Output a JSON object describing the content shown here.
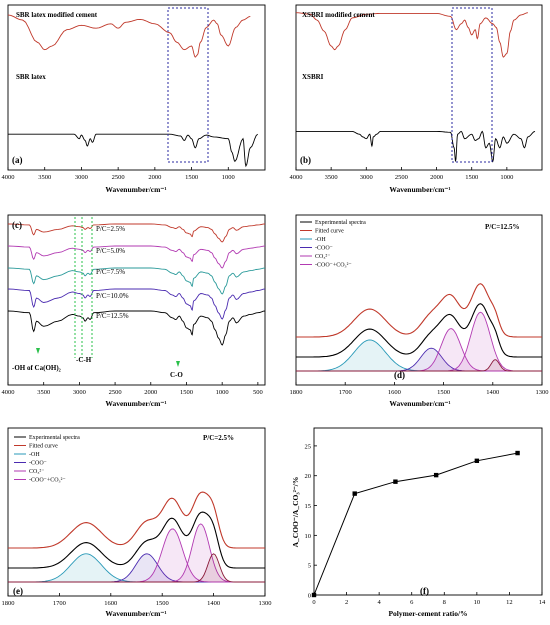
{
  "chart_data": [
    {
      "panel": "(a)",
      "type": "line",
      "xlabel": "Wavenumber/cm⁻¹",
      "xlim": [
        4000,
        500
      ],
      "x_reversed": true,
      "xticks": [
        4000,
        3500,
        3000,
        2500,
        2000,
        1500,
        1000
      ],
      "series": [
        {
          "name": "SBR latex modified cement",
          "color": "#c0392b",
          "x": [
            4000,
            3800,
            3600,
            3500,
            3400,
            3200,
            3000,
            2800,
            2600,
            2500,
            2400,
            2200,
            2000,
            1800,
            1700,
            1600,
            1500,
            1450,
            1420,
            1380,
            1300,
            1200,
            1150,
            1100,
            1000,
            900,
            800,
            700
          ],
          "y": [
            0.92,
            0.85,
            0.55,
            0.45,
            0.5,
            0.72,
            0.78,
            0.74,
            0.8,
            0.74,
            0.82,
            0.86,
            0.8,
            0.68,
            0.55,
            0.45,
            0.5,
            0.35,
            0.38,
            0.55,
            0.75,
            0.85,
            0.8,
            0.65,
            0.5,
            0.75,
            0.85,
            0.9
          ]
        },
        {
          "name": "SBR latex",
          "color": "#000000",
          "x": [
            4000,
            3100,
            3030,
            3000,
            2950,
            2920,
            2880,
            2850,
            2800,
            2000,
            1800,
            1650,
            1600,
            1550,
            1500,
            1450,
            1400,
            1300,
            1200,
            1000,
            950,
            910,
            800,
            760,
            700,
            600
          ],
          "y": [
            0.35,
            0.35,
            0.3,
            0.34,
            0.28,
            0.22,
            0.3,
            0.26,
            0.35,
            0.35,
            0.35,
            0.33,
            0.28,
            0.34,
            0.3,
            0.2,
            0.3,
            0.34,
            0.32,
            0.3,
            0.15,
            0.05,
            0.3,
            0.0,
            0.2,
            0.35
          ]
        }
      ]
    },
    {
      "panel": "(b)",
      "type": "line",
      "xlabel": "Wavenumber/cm⁻¹",
      "xlim": [
        4000,
        500
      ],
      "x_reversed": true,
      "xticks": [
        4000,
        3500,
        3000,
        2500,
        2000,
        1500,
        1000
      ],
      "series": [
        {
          "name": "XSBRI modified cement",
          "color": "#c0392b",
          "x": [
            4000,
            3800,
            3700,
            3600,
            3500,
            3450,
            3400,
            3300,
            3200,
            3000,
            2800,
            2500,
            2200,
            2000,
            1800,
            1720,
            1650,
            1600,
            1550,
            1500,
            1450,
            1420,
            1380,
            1300,
            1200,
            1150,
            1100,
            1050,
            1000,
            950,
            900,
            800,
            700
          ],
          "y": [
            0.95,
            0.93,
            0.85,
            0.7,
            0.5,
            0.45,
            0.5,
            0.72,
            0.88,
            0.93,
            0.94,
            0.94,
            0.94,
            0.94,
            0.9,
            0.72,
            0.8,
            0.85,
            0.75,
            0.65,
            0.72,
            0.6,
            0.8,
            0.88,
            0.8,
            0.75,
            0.55,
            0.35,
            0.4,
            0.7,
            0.85,
            0.92,
            0.95
          ]
        },
        {
          "name": "XSBRI",
          "color": "#000000",
          "x": [
            4000,
            3200,
            3100,
            3050,
            3000,
            2950,
            2920,
            2900,
            2850,
            2800,
            2000,
            1800,
            1750,
            1730,
            1700,
            1650,
            1600,
            1500,
            1450,
            1400,
            1350,
            1300,
            1250,
            1200,
            1160,
            1100,
            1050,
            1000,
            900,
            800,
            750,
            700,
            600
          ],
          "y": [
            0.38,
            0.38,
            0.35,
            0.32,
            0.3,
            0.35,
            0.22,
            0.32,
            0.35,
            0.38,
            0.38,
            0.37,
            0.2,
            0.05,
            0.35,
            0.38,
            0.3,
            0.35,
            0.28,
            0.3,
            0.38,
            0.2,
            0.25,
            0.05,
            0.3,
            0.2,
            0.32,
            0.25,
            0.35,
            0.3,
            0.2,
            0.32,
            0.38
          ]
        }
      ]
    },
    {
      "panel": "(c)",
      "type": "line",
      "xlabel": "Wavenumber/cm⁻¹",
      "xlim": [
        4000,
        400
      ],
      "x_reversed": true,
      "xticks": [
        4000,
        3500,
        3000,
        2500,
        2000,
        1500,
        1000,
        500
      ],
      "series": [
        {
          "name": "P/C=2.5%",
          "color": "#c0392b"
        },
        {
          "name": "P/C=5.0%",
          "color": "#b23ab2"
        },
        {
          "name": "P/C=7.5%",
          "color": "#2a9a9a"
        },
        {
          "name": "P/C=10.0%",
          "color": "#4a2bb0"
        },
        {
          "name": "P/C=12.5%",
          "color": "#000000"
        }
      ],
      "annotations": [
        "-OH of Ca(OH)₂",
        "-C-H",
        "C-O"
      ]
    },
    {
      "panel": "(d)",
      "type": "line",
      "title": "P/C=12.5%",
      "xlabel": "Wavenumber/cm⁻¹",
      "xlim": [
        1800,
        1300
      ],
      "x_reversed": true,
      "xticks": [
        1800,
        1700,
        1600,
        1500,
        1400,
        1300
      ],
      "legend": [
        "Experimental spectra",
        "Fitted curve",
        "-OH",
        "-COO⁻",
        "CO₃²⁻",
        "-COO⁻+CO₃²⁻"
      ],
      "series": [
        {
          "name": "-OH",
          "color": "#2a9ab8",
          "center": 1650,
          "height": 0.38,
          "width": 45
        },
        {
          "name": "-COO⁻",
          "color": "#4a2bb0",
          "center": 1525,
          "height": 0.28,
          "width": 30
        },
        {
          "name": "CO₃²⁻ (1)",
          "color": "#b23ab2",
          "center": 1485,
          "height": 0.52,
          "width": 28
        },
        {
          "name": "CO₃²⁻ (2)",
          "color": "#b23ab2",
          "center": 1425,
          "height": 0.72,
          "width": 28
        },
        {
          "name": "CO₃²⁻ (3)",
          "color": "#8a1a3a",
          "center": 1395,
          "height": 0.14,
          "width": 12
        }
      ]
    },
    {
      "panel": "(e)",
      "type": "line",
      "title": "P/C=2.5%",
      "xlabel": "Wavenumber/cm⁻¹",
      "xlim": [
        1800,
        1300
      ],
      "x_reversed": true,
      "xticks": [
        1800,
        1700,
        1600,
        1500,
        1400,
        1300
      ],
      "legend": [
        "Experimental spectra",
        "Fitted curve",
        "-OH",
        "-COO⁻",
        "CO₃²⁻",
        "-COO⁻+CO₃²⁻"
      ],
      "series": [
        {
          "name": "-OH",
          "color": "#2a9ab8",
          "center": 1648,
          "height": 0.35,
          "width": 42
        },
        {
          "name": "-COO⁻",
          "color": "#4a2bb0",
          "center": 1530,
          "height": 0.35,
          "width": 30
        },
        {
          "name": "CO₃²⁻ (1)",
          "color": "#b23ab2",
          "center": 1480,
          "height": 0.66,
          "width": 28
        },
        {
          "name": "CO₃²⁻ (2)",
          "color": "#b23ab2",
          "center": 1425,
          "height": 0.72,
          "width": 24
        },
        {
          "name": "CO₃²⁻ (3)",
          "color": "#8a1a3a",
          "center": 1400,
          "height": 0.35,
          "width": 16
        }
      ]
    },
    {
      "panel": "(f)",
      "type": "line",
      "xlabel": "Polymer-cement ratio/%",
      "ylabel": "A_COO⁻/A_CO₃²⁻/%",
      "xlim": [
        0,
        14
      ],
      "ylim": [
        0,
        28
      ],
      "xticks": [
        0,
        2,
        4,
        6,
        8,
        10,
        12,
        14
      ],
      "yticks": [
        0,
        5,
        10,
        15,
        20,
        25
      ],
      "series": [
        {
          "color": "#000000",
          "x": [
            0,
            2.5,
            5.0,
            7.5,
            10.0,
            12.5
          ],
          "y": [
            0,
            17.0,
            19.0,
            20.1,
            22.5,
            23.8
          ]
        }
      ]
    }
  ]
}
